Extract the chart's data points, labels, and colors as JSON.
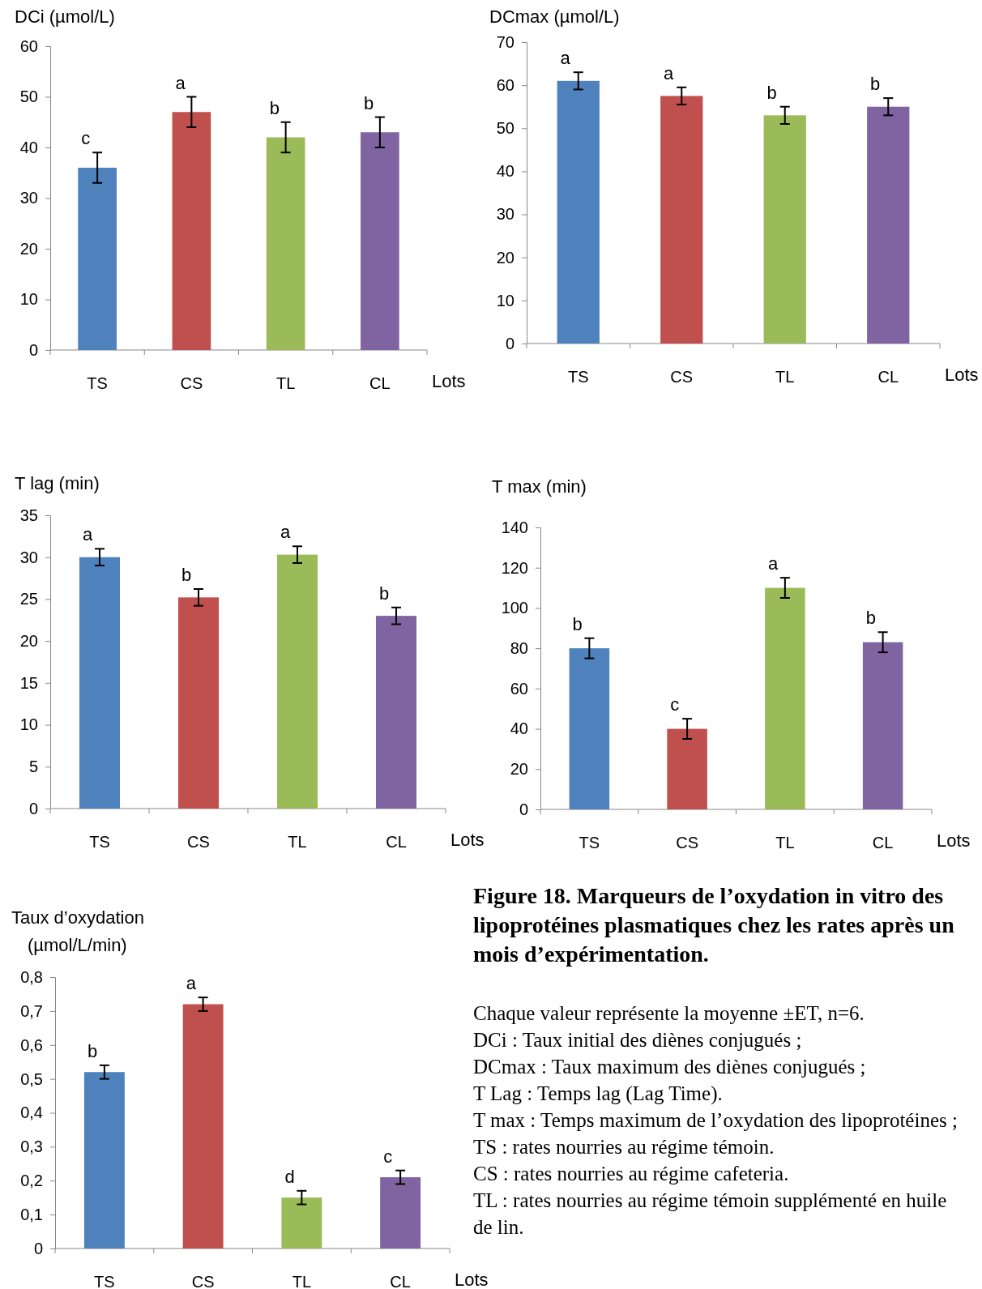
{
  "chart_data": [
    {
      "type": "bar",
      "ylabel": "DCi (µmol/L)",
      "xlabel": "Lots",
      "categories": [
        "TS",
        "CS",
        "TL",
        "CL"
      ],
      "values": [
        36,
        47,
        42,
        43
      ],
      "errors": [
        3,
        3,
        3,
        3
      ],
      "colors": [
        "#4f81bd",
        "#c0504d",
        "#9bbb59",
        "#8064a2"
      ],
      "ylim": [
        0,
        60
      ],
      "yticks": [
        0,
        10,
        20,
        30,
        40,
        50,
        60
      ],
      "annotations": [
        {
          "text": "c",
          "x": "TS",
          "y": 39
        },
        {
          "text": "a",
          "x": "CS",
          "y": 50
        },
        {
          "text": "b",
          "x": "TL",
          "y": 45
        },
        {
          "text": "b",
          "x": "CL",
          "y": 46
        }
      ]
    },
    {
      "type": "bar",
      "ylabel": "DCmax (µmol/L)",
      "xlabel": "Lots",
      "categories": [
        "TS",
        "CS",
        "TL",
        "CL"
      ],
      "values": [
        61,
        57.5,
        53,
        55
      ],
      "errors": [
        2,
        2,
        2,
        2
      ],
      "colors": [
        "#4f81bd",
        "#c0504d",
        "#9bbb59",
        "#8064a2"
      ],
      "ylim": [
        0,
        70
      ],
      "yticks": [
        0,
        10,
        20,
        30,
        40,
        50,
        60,
        70
      ],
      "annotations": [
        {
          "text": "a",
          "x": "TS",
          "y": 63
        },
        {
          "text": "a",
          "x": "CS",
          "y": 59.5
        },
        {
          "text": "b",
          "x": "TL",
          "y": 55
        },
        {
          "text": "b",
          "x": "CL",
          "y": 57
        }
      ]
    },
    {
      "type": "bar",
      "ylabel": "T lag (min)",
      "xlabel": "Lots",
      "categories": [
        "TS",
        "CS",
        "TL",
        "CL"
      ],
      "values": [
        30,
        25.2,
        30.3,
        23
      ],
      "errors": [
        1,
        1,
        1,
        1
      ],
      "colors": [
        "#4f81bd",
        "#c0504d",
        "#9bbb59",
        "#8064a2"
      ],
      "ylim": [
        0,
        35
      ],
      "yticks": [
        0,
        5,
        10,
        15,
        20,
        25,
        30,
        35
      ],
      "annotations": [
        {
          "text": "a",
          "x": "TS",
          "y": 31
        },
        {
          "text": "b",
          "x": "CS",
          "y": 26.2
        },
        {
          "text": "a",
          "x": "TL",
          "y": 31.3
        },
        {
          "text": "b",
          "x": "CL",
          "y": 24
        }
      ]
    },
    {
      "type": "bar",
      "ylabel": "T max (min)",
      "xlabel": "Lots",
      "categories": [
        "TS",
        "CS",
        "TL",
        "CL"
      ],
      "values": [
        80,
        40,
        110,
        83
      ],
      "errors": [
        5,
        5,
        5,
        5
      ],
      "colors": [
        "#4f81bd",
        "#c0504d",
        "#9bbb59",
        "#8064a2"
      ],
      "ylim": [
        0,
        140
      ],
      "yticks": [
        0,
        20,
        40,
        60,
        80,
        100,
        120,
        140
      ],
      "annotations": [
        {
          "text": "b",
          "x": "TS",
          "y": 85
        },
        {
          "text": "c",
          "x": "CS",
          "y": 45
        },
        {
          "text": "a",
          "x": "TL",
          "y": 115
        },
        {
          "text": "b",
          "x": "CL",
          "y": 88
        }
      ]
    },
    {
      "type": "bar",
      "ylabel": "Taux d’oxydation (µmol/L/min)",
      "xlabel": "Lots",
      "categories": [
        "TS",
        "CS",
        "TL",
        "CL"
      ],
      "values": [
        0.52,
        0.72,
        0.15,
        0.21
      ],
      "errors": [
        0.02,
        0.02,
        0.02,
        0.02
      ],
      "colors": [
        "#4f81bd",
        "#c0504d",
        "#9bbb59",
        "#8064a2"
      ],
      "ylim": [
        0,
        0.8
      ],
      "yticks": [
        0,
        {
          "value": 0.1,
          "label": "0,1"
        },
        {
          "value": 0.2,
          "label": "0,2"
        },
        {
          "value": 0.3,
          "label": "0,3"
        },
        {
          "value": 0.4,
          "label": "0,4"
        },
        {
          "value": 0.5,
          "label": "0,5"
        },
        {
          "value": 0.6,
          "label": "0,6"
        },
        {
          "value": 0.7,
          "label": "0,7"
        },
        {
          "value": 0.8,
          "label": "0,8"
        }
      ],
      "annotations": [
        {
          "text": "b",
          "x": "TS",
          "y": 0.54
        },
        {
          "text": "a",
          "x": "CS",
          "y": 0.74
        },
        {
          "text": "d",
          "x": "TL",
          "y": 0.17
        },
        {
          "text": "c",
          "x": "CL",
          "y": 0.23
        }
      ]
    },
    {
      "type": "other",
      "title": "Figure 18. Marqueurs de l’oxydation in vitro des lipoprotéines plasmatiques chez les rates après un mois d’expérimentation.",
      "annotations": [
        "Chaque valeur représente la moyenne ±ET, n=6.",
        "DCi : Taux initial des diènes conjugués ;",
        "DCmax : Taux maximum des diènes conjugués ;",
        " T Lag : Temps lag (Lag Time).",
        "T max : Temps maximum de l’oxydation des lipoprotéines ;",
        "TS : rates nourries au régime témoin.",
        "CS : rates nourries au régime cafeteria.",
        "TL : rates nourries au régime témoin supplémenté en huile de lin."
      ]
    }
  ]
}
